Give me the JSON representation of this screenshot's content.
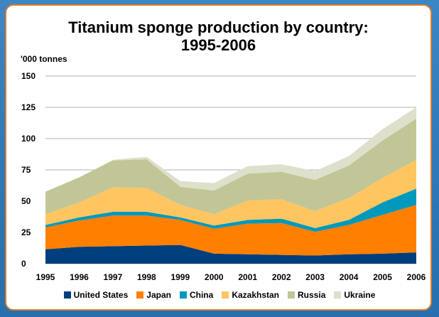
{
  "chart_data": {
    "type": "area",
    "stacked": true,
    "title": "Titanium sponge production by country: 1995-2006",
    "title_lines": [
      "Titanium sponge production by country:",
      "1995-2006"
    ],
    "ylabel": "'000 tonnes",
    "xlabel": "",
    "x": [
      "1995",
      "1996",
      "1997",
      "1998",
      "1999",
      "2000",
      "2001",
      "2002",
      "2003",
      "2004",
      "2005",
      "2006"
    ],
    "y_ticks": [
      "0",
      "25",
      "50",
      "75",
      "100",
      "125",
      "150"
    ],
    "ylim": [
      0,
      150
    ],
    "grid": true,
    "legend_position": "bottom",
    "series": [
      {
        "name": "United States",
        "color": "#003f7d",
        "values": [
          11.5,
          13.5,
          14,
          14.5,
          15,
          8,
          7.5,
          7,
          6.5,
          7.5,
          8,
          9
        ]
      },
      {
        "name": "Japan",
        "color": "#ff7f00",
        "values": [
          17.5,
          21,
          24.5,
          24,
          20,
          20,
          24.5,
          25.5,
          19,
          23.5,
          31,
          38
        ]
      },
      {
        "name": "China",
        "color": "#0099bb",
        "values": [
          2,
          2.5,
          3,
          3,
          2,
          2.5,
          3,
          3.5,
          3,
          4,
          10,
          13
        ]
      },
      {
        "name": "Kazakhstan",
        "color": "#ffc561",
        "values": [
          8.5,
          12,
          19.5,
          19,
          10,
          9,
          15.5,
          15.5,
          13.5,
          17.5,
          19.5,
          23
        ]
      },
      {
        "name": "Russia",
        "color": "#c2c696",
        "values": [
          18,
          20,
          21.5,
          23,
          14.5,
          19,
          21.5,
          22,
          25,
          26,
          30,
          33
        ]
      },
      {
        "name": "Ukraine",
        "color": "#dfe0cc",
        "values": [
          0,
          0,
          0.5,
          2,
          4.5,
          6,
          6,
          6,
          7,
          7.5,
          9,
          9
        ]
      }
    ]
  }
}
